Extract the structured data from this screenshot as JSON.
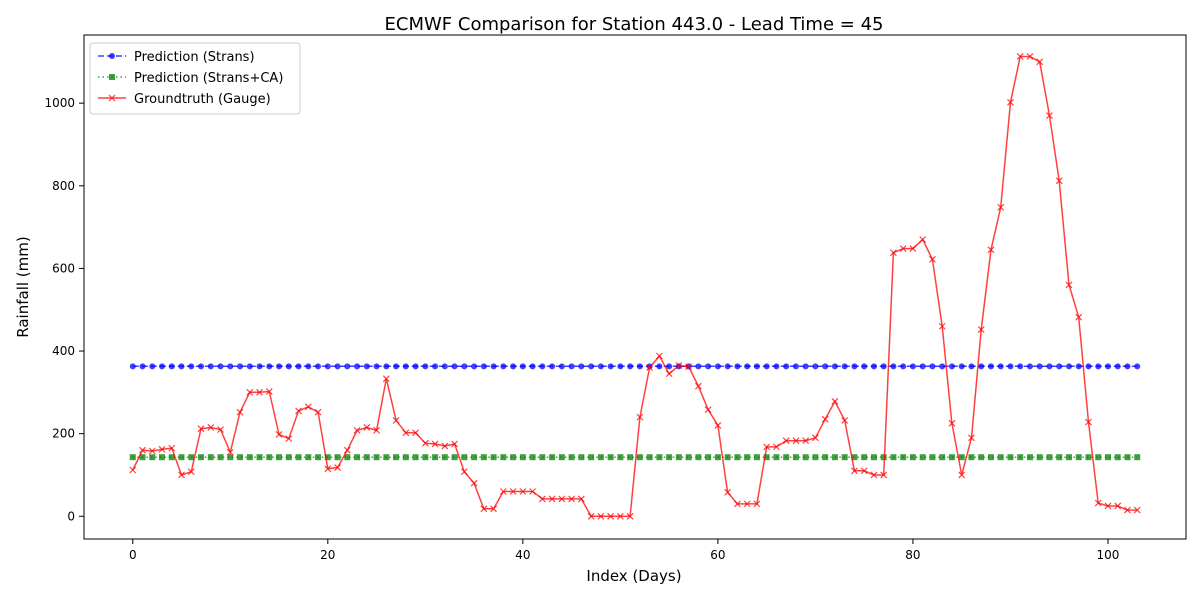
{
  "chart_data": {
    "type": "line",
    "title": "ECMWF Comparison for Station 443.0 - Lead Time = 45",
    "xlabel": "Index (Days)",
    "ylabel": "Rainfall (mm)",
    "xlim": [
      -5,
      108
    ],
    "ylim": [
      -55,
      1165
    ],
    "xticks": [
      0,
      20,
      40,
      60,
      80,
      100
    ],
    "yticks": [
      0,
      200,
      400,
      600,
      800,
      1000
    ],
    "grid": false,
    "legend_position": "top-left",
    "series": [
      {
        "name": "Prediction (Strans)",
        "color": "#0000ff",
        "line_style": "dashed",
        "marker": "circle",
        "constant_value": 363,
        "x_range": [
          0,
          103
        ]
      },
      {
        "name": "Prediction (Strans+CA)",
        "color": "#008000",
        "line_style": "dotted",
        "marker": "square",
        "constant_value": 143,
        "x_range": [
          0,
          103
        ]
      },
      {
        "name": "Groundtruth (Gauge)",
        "color": "#ff0000",
        "line_style": "solid",
        "marker": "x",
        "values": [
          112,
          160,
          158,
          162,
          165,
          100,
          108,
          212,
          215,
          210,
          155,
          252,
          300,
          300,
          302,
          198,
          188,
          255,
          265,
          252,
          115,
          118,
          160,
          208,
          215,
          208,
          333,
          232,
          202,
          202,
          177,
          175,
          170,
          175,
          108,
          80,
          18,
          18,
          60,
          60,
          60,
          60,
          42,
          42,
          42,
          42,
          42,
          0,
          0,
          0,
          0,
          0,
          240,
          360,
          388,
          345,
          365,
          362,
          315,
          258,
          220,
          58,
          30,
          30,
          30,
          168,
          168,
          183,
          183,
          183,
          190,
          235,
          278,
          232,
          110,
          110,
          100,
          100,
          638,
          648,
          648,
          670,
          622,
          460,
          225,
          100,
          190,
          452,
          645,
          748,
          1002,
          1113,
          1113,
          1100,
          970,
          812,
          560,
          482,
          228,
          32,
          25,
          25,
          15,
          15
        ]
      }
    ]
  }
}
